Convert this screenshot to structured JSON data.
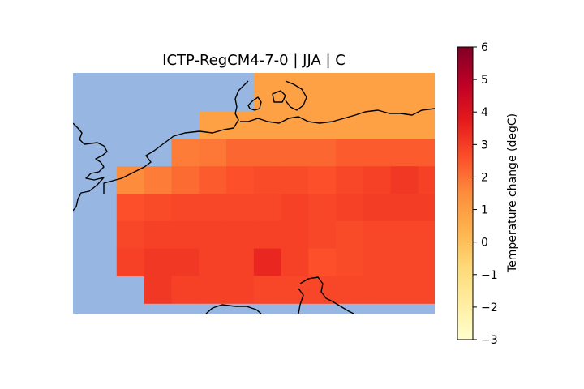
{
  "title": "ICTP-RegCM4-7-0 | JJA | C",
  "colors": {
    "sea": "#97b6e1",
    "coastline": "#000000",
    "cmap": "YlOrRd",
    "cmap_stops": [
      "#ffffcc",
      "#ffeda0",
      "#fed976",
      "#feb24c",
      "#fd8d3c",
      "#fc4e2a",
      "#e31a1c",
      "#bd0026",
      "#800026"
    ]
  },
  "colorbar": {
    "label": "Temperature change (degC)",
    "min": -3,
    "max": 6,
    "ticks": [
      "−3",
      "−2",
      "−1",
      "0",
      "1",
      "2",
      "3",
      "4",
      "5",
      "6"
    ]
  },
  "chart_data": {
    "type": "heatmap",
    "title": "ICTP-RegCM4-7-0 | JJA | C",
    "variable": "Temperature change (degC)",
    "season": "JJA",
    "vmin": -3,
    "vmax": 6,
    "cols": 13,
    "rows": 9,
    "grid": [
      [
        null,
        null,
        null,
        null,
        null,
        null,
        0.9,
        0.9,
        0.9,
        0.9,
        0.9,
        0.9,
        0.9
      ],
      [
        null,
        null,
        null,
        null,
        null,
        null,
        0.9,
        0.9,
        0.9,
        0.9,
        0.9,
        0.9,
        0.9
      ],
      [
        null,
        null,
        null,
        null,
        0.9,
        0.9,
        0.9,
        0.9,
        0.9,
        0.9,
        0.9,
        0.9,
        0.9
      ],
      [
        null,
        null,
        null,
        1.8,
        1.9,
        2.2,
        2.2,
        2.2,
        2.2,
        2.4,
        2.4,
        2.4,
        2.4
      ],
      [
        null,
        1.5,
        1.8,
        2.1,
        2.4,
        2.6,
        2.7,
        2.7,
        2.6,
        2.8,
        2.9,
        3.1,
        2.9
      ],
      [
        null,
        2.6,
        2.7,
        2.8,
        2.8,
        2.8,
        2.8,
        2.9,
        2.8,
        2.9,
        3.0,
        3.0,
        3.0
      ],
      [
        null,
        2.8,
        2.9,
        2.9,
        2.9,
        2.9,
        2.9,
        2.9,
        2.8,
        2.7,
        2.8,
        2.8,
        2.8
      ],
      [
        null,
        2.9,
        3.1,
        3.1,
        2.9,
        2.9,
        3.5,
        2.9,
        2.6,
        2.7,
        2.8,
        2.8,
        2.8
      ],
      [
        null,
        null,
        3.1,
        2.9,
        2.9,
        2.9,
        2.8,
        2.8,
        2.8,
        2.8,
        2.8,
        2.8,
        2.8
      ]
    ]
  }
}
